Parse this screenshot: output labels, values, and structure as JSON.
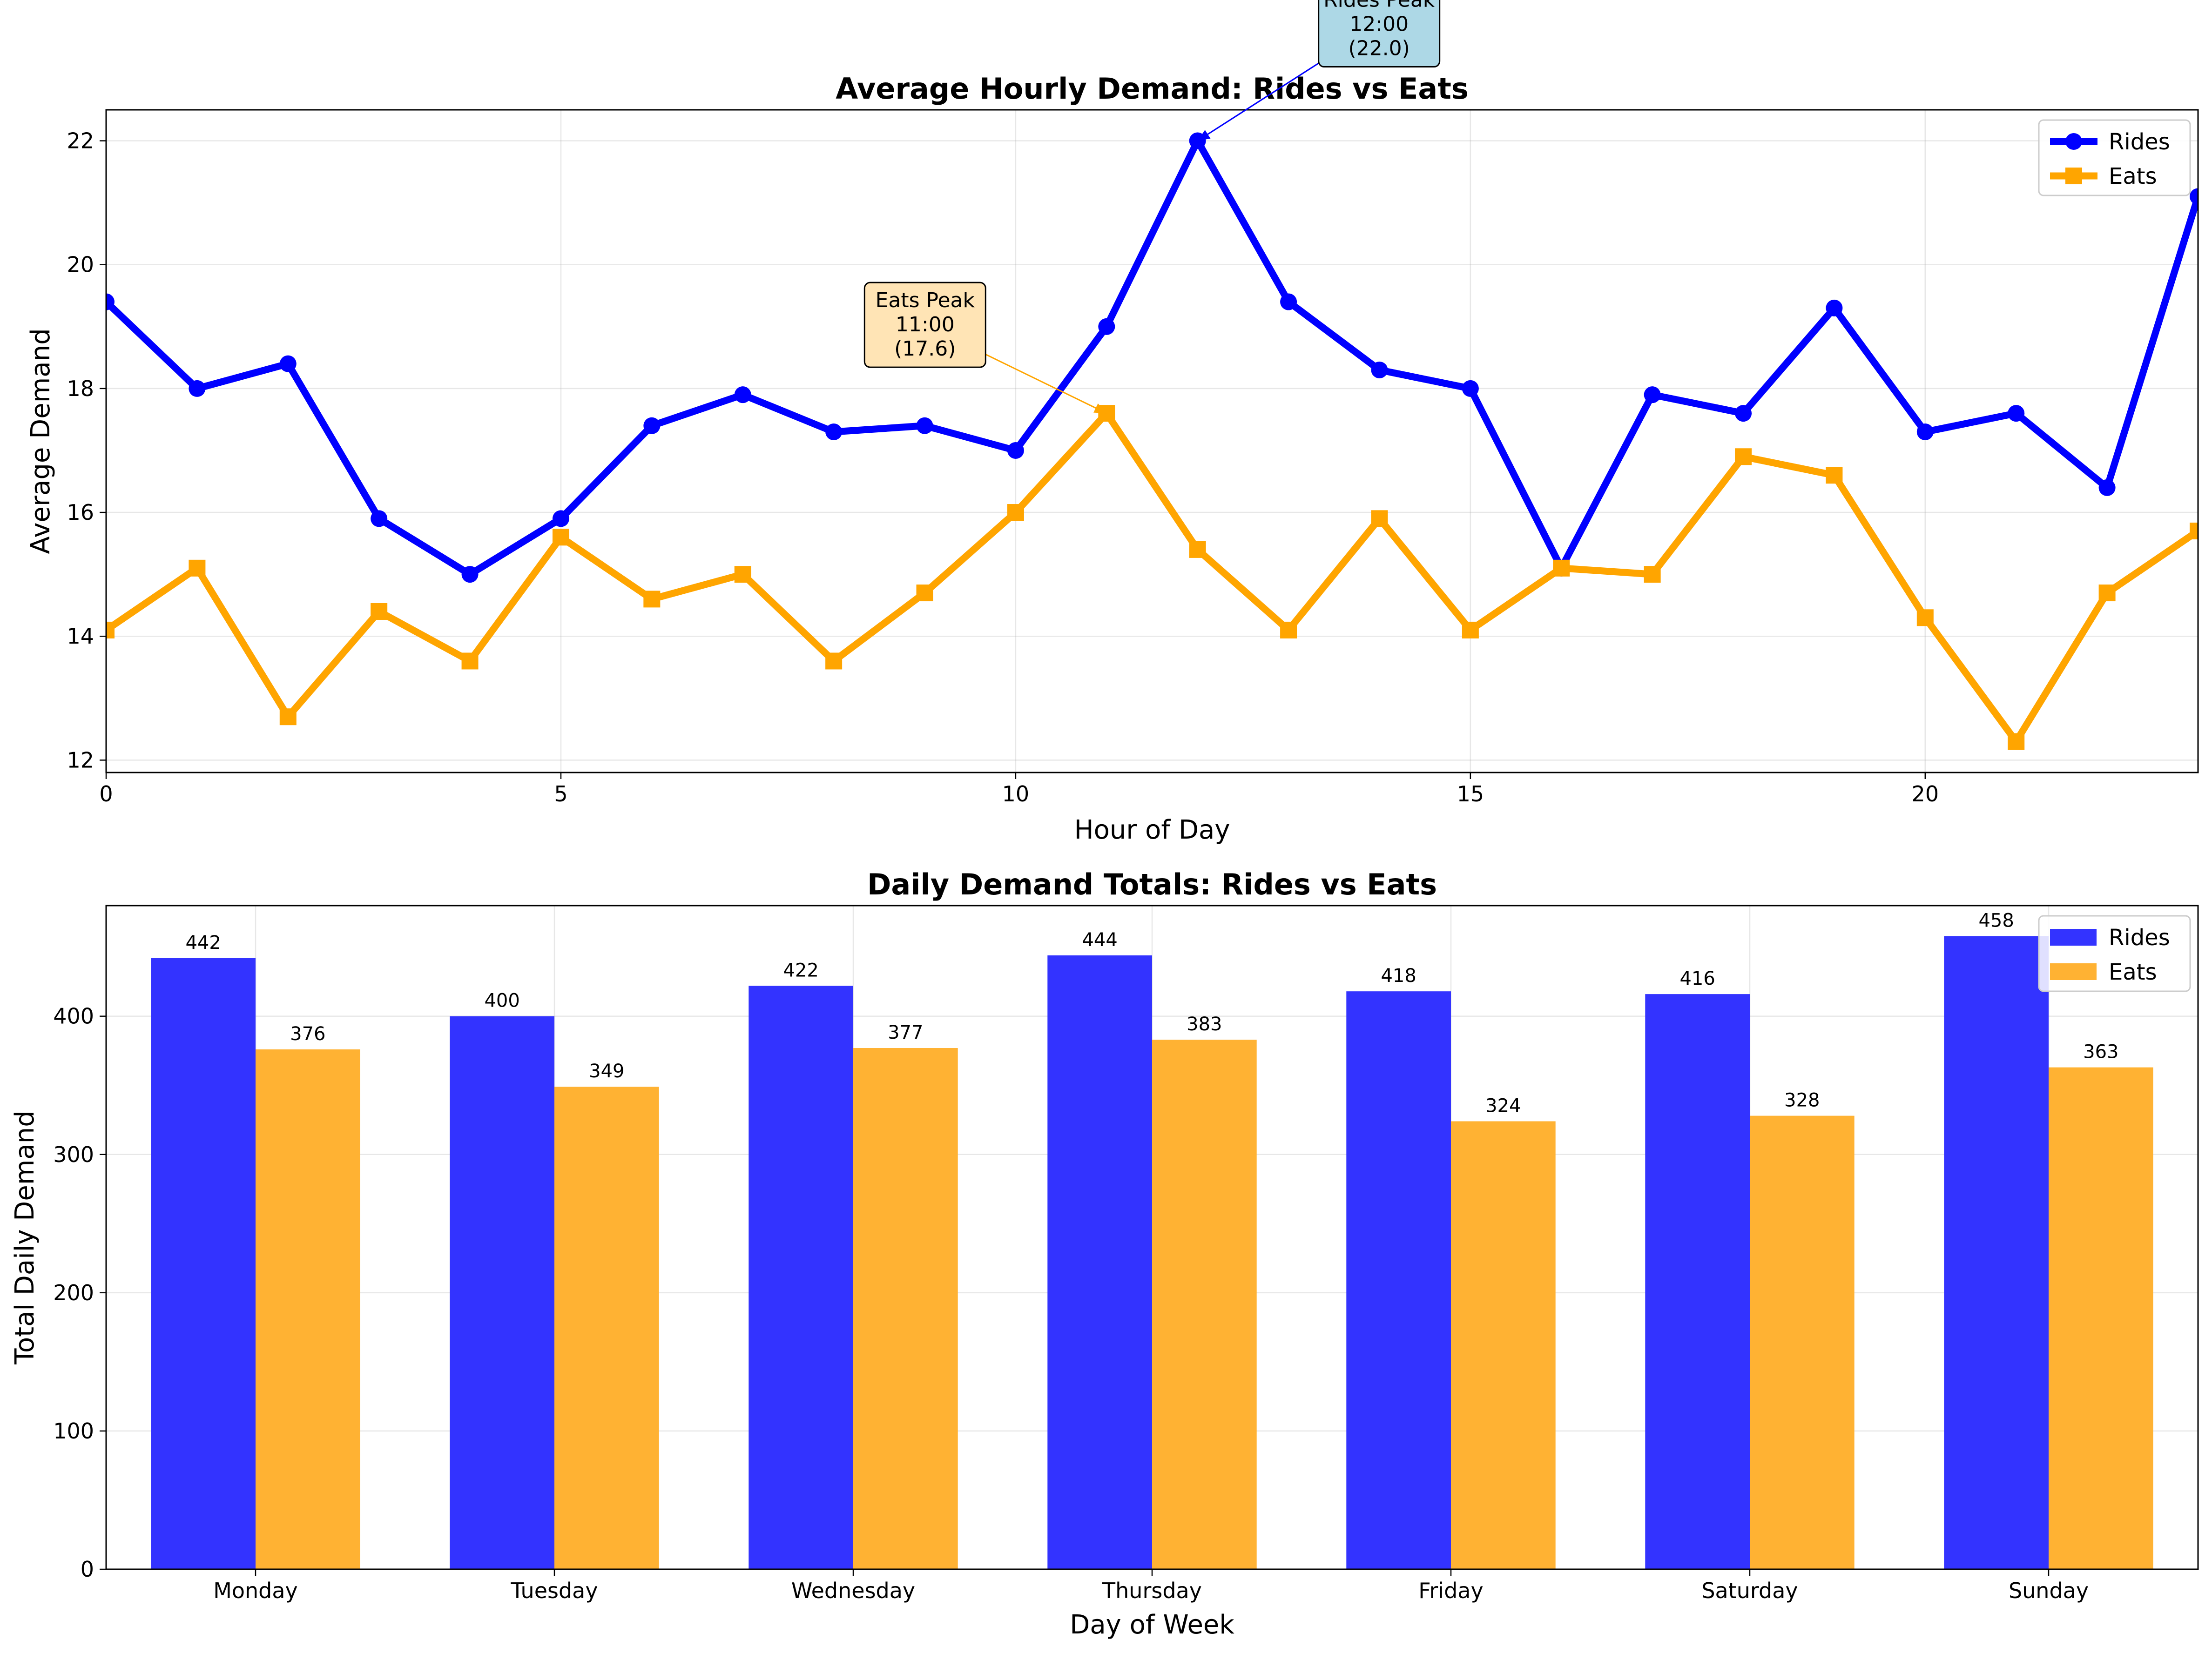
{
  "chart_data": [
    {
      "type": "line",
      "title": "Average Hourly Demand: Rides vs Eats",
      "xlabel": "Hour of Day",
      "ylabel": "Average Demand",
      "xlim": [
        0,
        23
      ],
      "ylim": [
        11.8,
        22.5
      ],
      "xticks": [
        0,
        5,
        10,
        15,
        20
      ],
      "yticks": [
        12,
        14,
        16,
        18,
        20,
        22
      ],
      "grid": true,
      "legend_placement": "top-right",
      "x": [
        0,
        1,
        2,
        3,
        4,
        5,
        6,
        7,
        8,
        9,
        10,
        11,
        12,
        13,
        14,
        15,
        16,
        17,
        18,
        19,
        20,
        21,
        22,
        23
      ],
      "series": [
        {
          "name": "Rides",
          "color": "#0000ff",
          "marker": "circle",
          "values": [
            19.4,
            18.0,
            18.4,
            15.9,
            15.0,
            15.9,
            17.4,
            17.9,
            17.3,
            17.4,
            17.0,
            19.0,
            22.0,
            19.4,
            18.3,
            18.0,
            15.1,
            17.9,
            17.6,
            19.3,
            17.3,
            17.6,
            16.4,
            21.1
          ]
        },
        {
          "name": "Eats",
          "color": "#ffa500",
          "marker": "square",
          "values": [
            14.1,
            15.1,
            12.7,
            14.4,
            13.6,
            15.6,
            14.6,
            15.0,
            13.6,
            14.7,
            16.0,
            17.6,
            15.4,
            14.1,
            15.9,
            14.1,
            15.1,
            15.0,
            16.9,
            16.6,
            14.3,
            12.3,
            14.7,
            15.7
          ]
        }
      ],
      "annotations": [
        {
          "series": "Rides",
          "x": 12,
          "y": 22.0,
          "lines": [
            "Rides Peak",
            "12:00",
            "(22.0)"
          ],
          "box_color": "#add8e6",
          "arrow_color": "#0000ff"
        },
        {
          "series": "Eats",
          "x": 11,
          "y": 17.6,
          "lines": [
            "Eats Peak",
            "11:00",
            "(17.6)"
          ],
          "box_color": "#ffe4b5",
          "arrow_color": "#ffa500"
        }
      ]
    },
    {
      "type": "bar",
      "title": "Daily Demand Totals: Rides vs Eats",
      "xlabel": "Day of Week",
      "ylabel": "Total Daily Demand",
      "ylim": [
        0,
        480
      ],
      "yticks": [
        0,
        100,
        200,
        300,
        400
      ],
      "grid": true,
      "legend_placement": "top-right",
      "categories": [
        "Monday",
        "Tuesday",
        "Wednesday",
        "Thursday",
        "Friday",
        "Saturday",
        "Sunday"
      ],
      "series": [
        {
          "name": "Rides",
          "color": "#3333ff",
          "values": [
            442,
            400,
            422,
            444,
            418,
            416,
            458
          ]
        },
        {
          "name": "Eats",
          "color": "#ffb233",
          "values": [
            376,
            349,
            377,
            383,
            324,
            328,
            363
          ]
        }
      ]
    }
  ]
}
